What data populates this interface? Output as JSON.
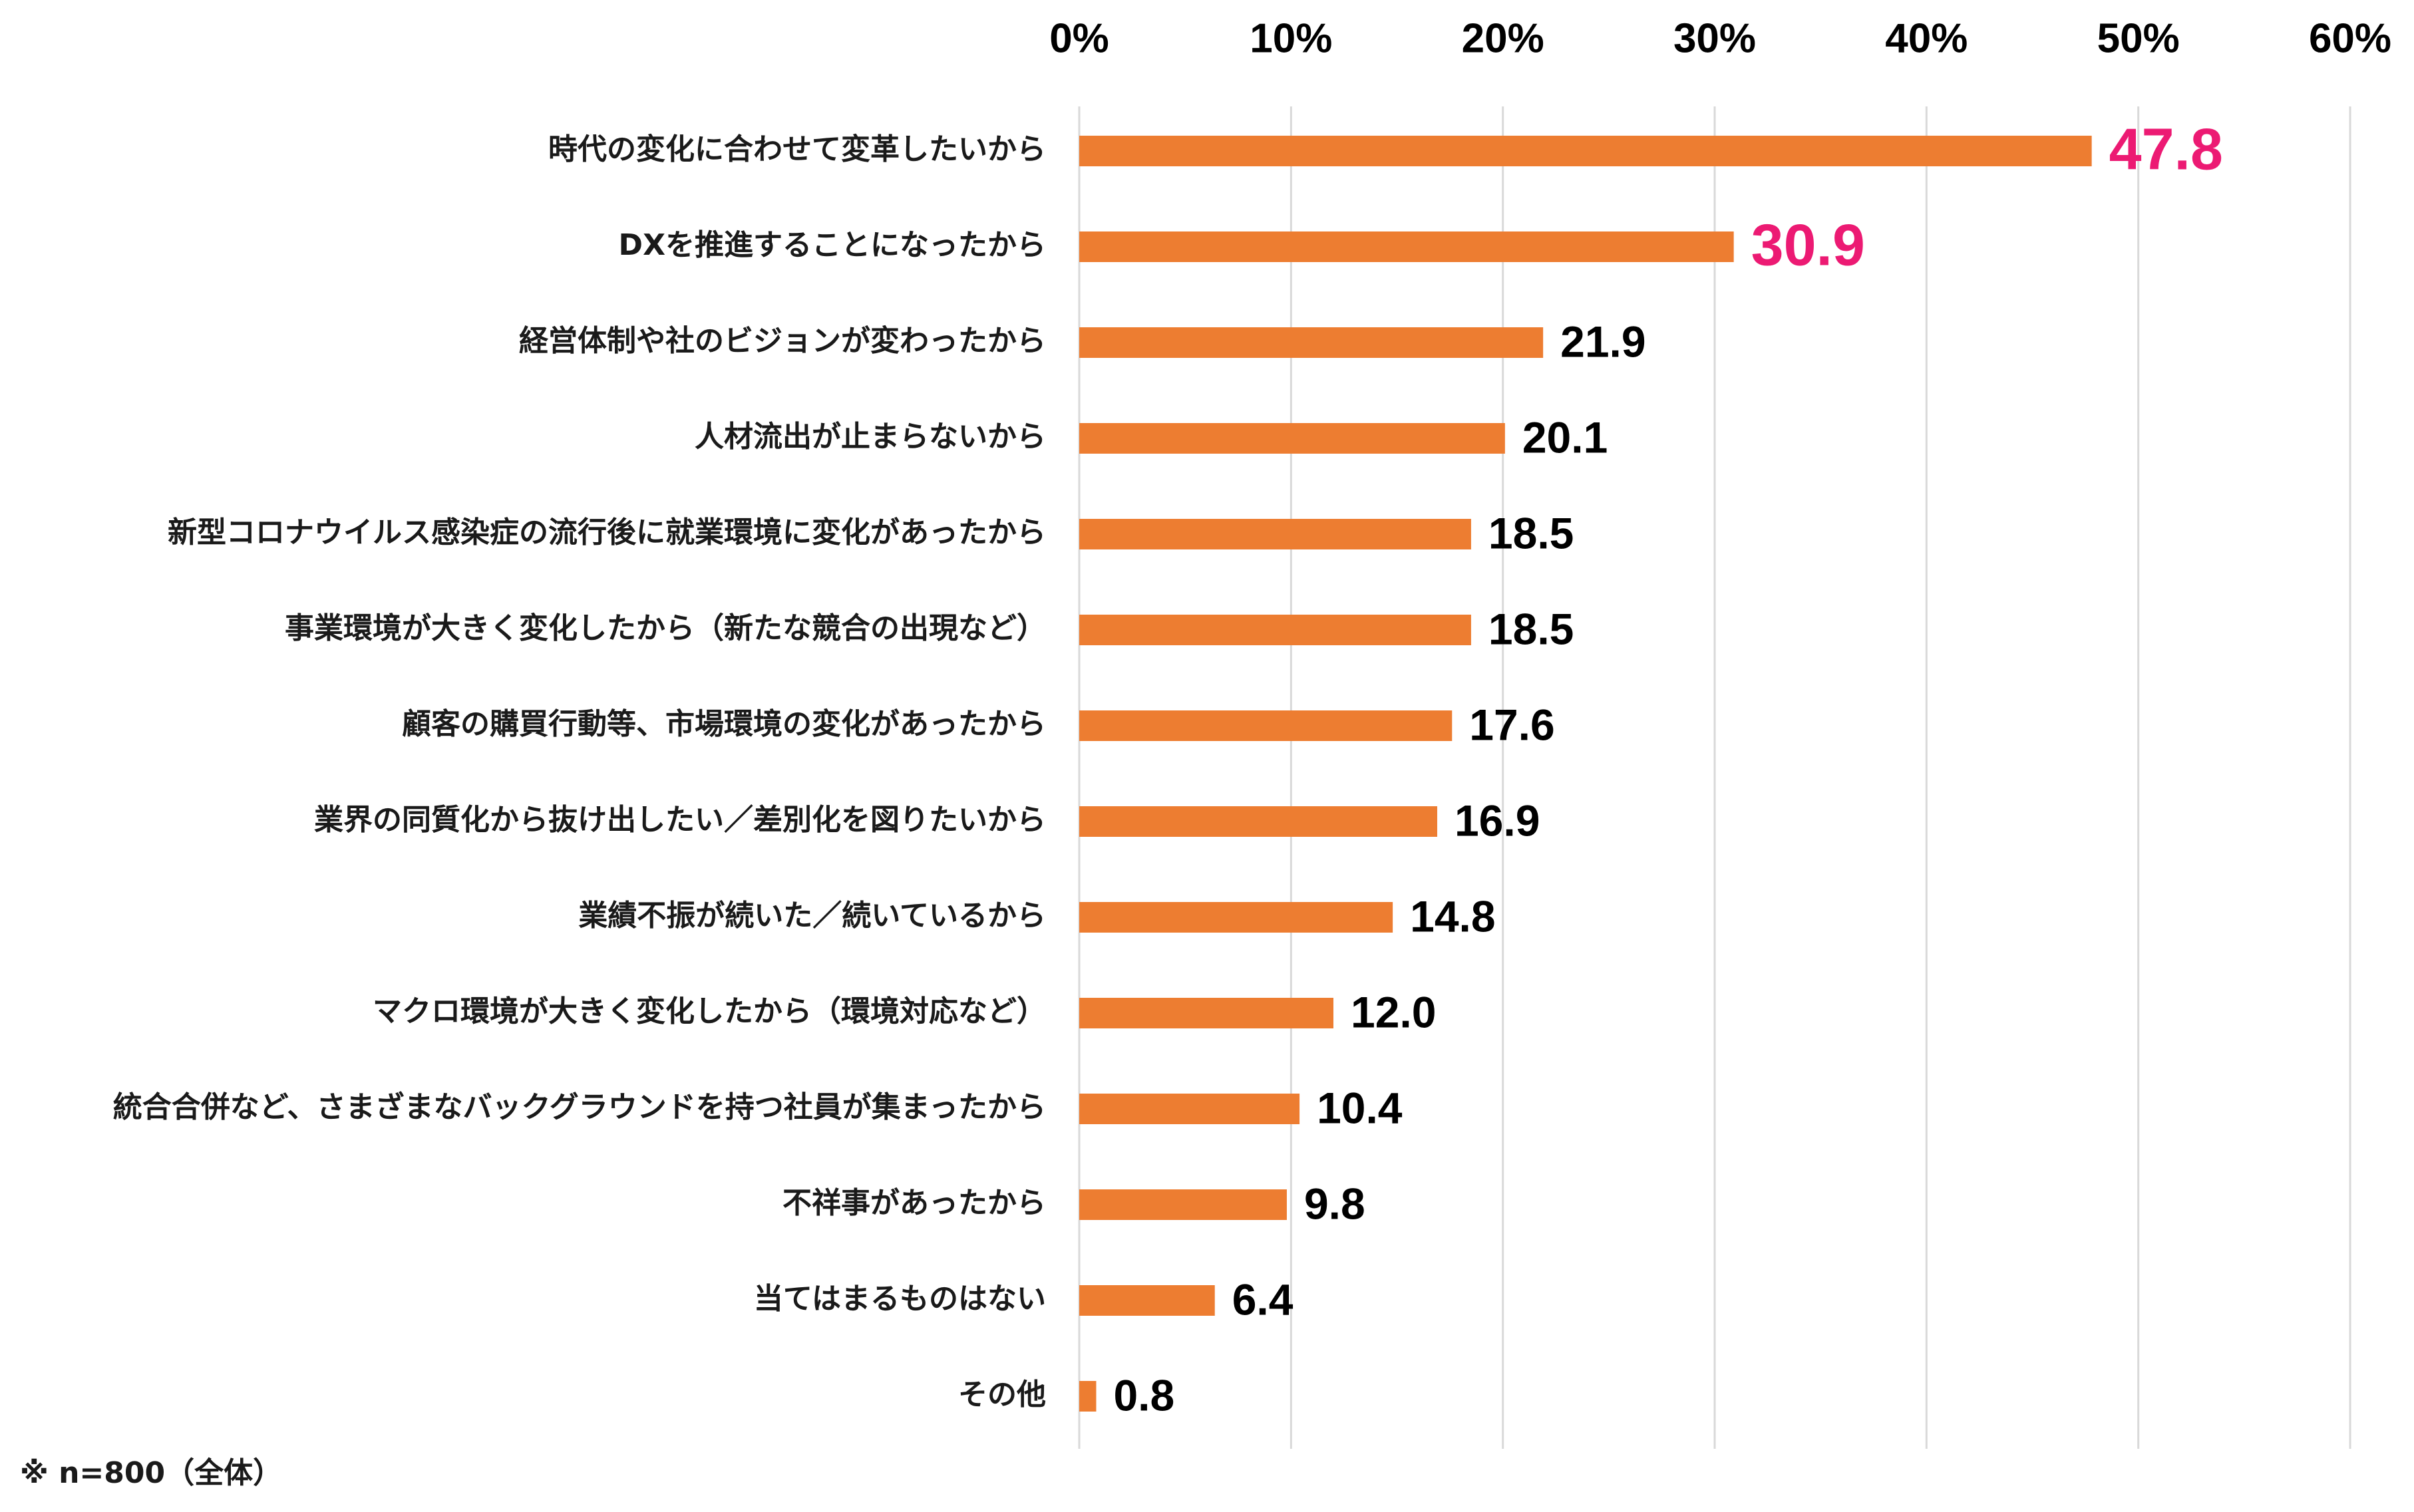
{
  "chart_data": {
    "type": "bar",
    "orientation": "horizontal",
    "categories": [
      "時代の変化に合わせて変革したいから",
      "DXを推進することになったから",
      "経営体制や社のビジョンが変わったから",
      "人材流出が止まらないから",
      "新型コロナウイルス感染症の流行後に就業環境に変化があったから",
      "事業環境が大きく変化したから（新たな競合の出現など）",
      "顧客の購買行動等、市場環境の変化があったから",
      "業界の同質化から抜け出したい／差別化を図りたいから",
      "業績不振が続いた／続いているから",
      "マクロ環境が大きく変化したから（環境対応など）",
      "統合合併など、さまざまなバックグラウンドを持つ社員が集まったから",
      "不祥事があったから",
      "当てはまるものはない",
      "その他"
    ],
    "values": [
      47.8,
      30.9,
      21.9,
      20.1,
      18.5,
      18.5,
      17.6,
      16.9,
      14.8,
      12.0,
      10.4,
      9.8,
      6.4,
      0.8
    ],
    "value_labels": [
      "47.8",
      "30.9",
      "21.9",
      "20.1",
      "18.5",
      "18.5",
      "17.6",
      "16.9",
      "14.8",
      "12.0",
      "10.4",
      "9.8",
      "6.4",
      "0.8"
    ],
    "highlight_top": 2,
    "xlim": [
      0,
      60
    ],
    "x_ticks": [
      "0%",
      "10%",
      "20%",
      "30%",
      "40%",
      "50%",
      "60%"
    ],
    "x_axis_position": "top",
    "grid": true,
    "legend": "none",
    "title": "",
    "xlabel": "",
    "ylabel": ""
  },
  "note": "※ n=800（全体）",
  "colors": {
    "bar": "#ed7d31",
    "highlight_label": "#ec1a73",
    "grid": "#d9d9d9",
    "text": "#000000"
  }
}
